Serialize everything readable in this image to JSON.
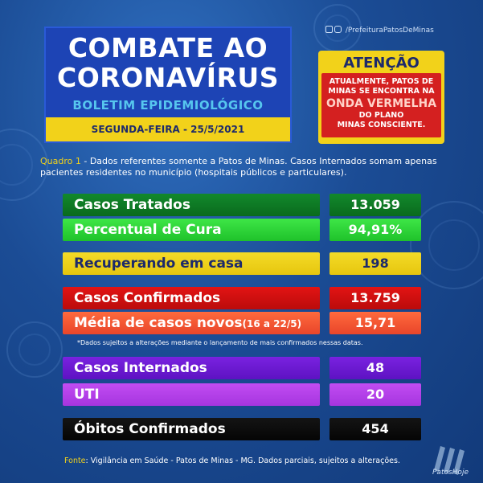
{
  "header": {
    "title_line1": "COMBATE AO",
    "title_line2": "CORONAVÍRUS",
    "subtitle": "BOLETIM EPIDEMIOLÓGICO",
    "date": "SEGUNDA-FEIRA - 25/5/2021"
  },
  "social_handle": "/PrefeituraPatosDeMinas",
  "attention": {
    "title": "ATENÇÃO",
    "line1": "ATUALMENTE, PATOS DE",
    "line2": "MINAS SE ENCONTRA NA",
    "highlight": "ONDA VERMELHA",
    "line3": "DO PLANO",
    "line4": "MINAS CONSCIENTE."
  },
  "quadro": {
    "label": "Quadro 1",
    "text": " - Dados referentes somente a Patos de Minas. Casos Internados somam apenas pacientes residentes no município (hospitais públicos e particulares)."
  },
  "stats": {
    "tratados": {
      "label": "Casos Tratados",
      "value": "13.059"
    },
    "cura": {
      "label": "Percentual de Cura",
      "value": "94,91%"
    },
    "recuperando": {
      "label": "Recuperando em casa",
      "value": "198"
    },
    "confirmados": {
      "label": "Casos Confirmados",
      "value": "13.759"
    },
    "media": {
      "label": "Média de casos novos",
      "sub": "(16 a 22/5)",
      "value": "15,71"
    },
    "internados": {
      "label": "Casos Internados",
      "value": "48"
    },
    "uti": {
      "label": "UTI",
      "value": "20"
    },
    "obitos": {
      "label": "Óbitos Confirmados",
      "value": "454"
    }
  },
  "note": "*Dados sujeitos a alterações mediante o lançamento de mais confirmados nessas datas.",
  "fonte": {
    "label": "Fonte",
    "text": ": Vigilância em Saúde - Patos de Minas - MG. Dados parciais, sujeitos a alterações."
  },
  "brand": "PatosHoje",
  "colors": {
    "background": "#1b4c95",
    "yellow": "#f2d21a",
    "red": "#d42020",
    "title_blue": "#1d44b5"
  }
}
